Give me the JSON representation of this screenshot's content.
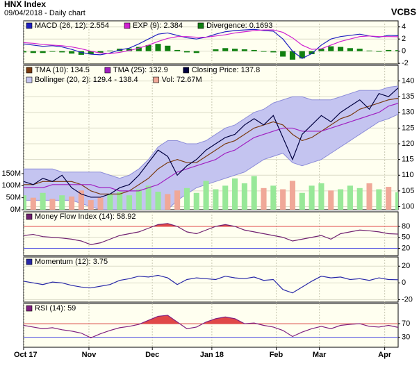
{
  "header": {
    "title": "HNX Index",
    "subtitle": "09/04/2018 - Daily chart",
    "brand": "VCBS"
  },
  "chart_data": [
    {
      "type": "line",
      "xlim": [
        0,
        39
      ],
      "ylim": [
        -2.1,
        5
      ],
      "yticks": [
        -2,
        0,
        2,
        4
      ],
      "grid": true,
      "series": [
        {
          "name": "MACD (26, 12): 2.554",
          "style": "line",
          "color": "#2020c0",
          "values": [
            1.2,
            1.0,
            0.8,
            0.9,
            0.7,
            0.3,
            -0.2,
            -0.5,
            -0.6,
            -0.3,
            0.2,
            0.5,
            1.2,
            2.0,
            2.8,
            3.0,
            2.6,
            2.2,
            2.0,
            2.3,
            2.8,
            3.2,
            3.4,
            3.5,
            3.6,
            3.4,
            3.3,
            2.0,
            0.0,
            -1.2,
            -0.4,
            1.0,
            2.0,
            2.4,
            2.6,
            2.8,
            2.5,
            2.3,
            2.6,
            2.554
          ]
        },
        {
          "name": "EXP (9): 2.384",
          "style": "line",
          "color": "#d020d0",
          "values": [
            1.4,
            1.3,
            1.1,
            1.0,
            0.9,
            0.7,
            0.4,
            0.0,
            -0.3,
            -0.4,
            -0.2,
            0.1,
            0.5,
            1.0,
            1.6,
            2.1,
            2.4,
            2.4,
            2.3,
            2.3,
            2.5,
            2.7,
            3.0,
            3.2,
            3.4,
            3.5,
            3.5,
            3.1,
            2.2,
            1.0,
            0.3,
            0.4,
            1.0,
            1.6,
            2.0,
            2.4,
            2.5,
            2.4,
            2.4,
            2.384
          ]
        },
        {
          "name": "Divergence: 0.1693",
          "style": "bar",
          "color": "#108010",
          "values": [
            -0.2,
            -0.3,
            -0.3,
            -0.1,
            -0.2,
            -0.4,
            -0.6,
            -0.5,
            -0.3,
            0.1,
            0.4,
            0.4,
            0.7,
            1.0,
            1.2,
            0.9,
            0.2,
            -0.2,
            -0.3,
            0.0,
            0.3,
            0.5,
            0.4,
            0.3,
            0.2,
            -0.1,
            -0.2,
            -0.9,
            -1.4,
            -1.2,
            -0.5,
            0.4,
            0.8,
            0.7,
            0.5,
            0.4,
            0.1,
            -0.1,
            0.2,
            0.1693
          ]
        }
      ]
    },
    {
      "type": "line",
      "xlim": [
        0,
        39
      ],
      "ylim": [
        99,
        145
      ],
      "yticks": [
        100,
        105,
        110,
        115,
        120,
        125,
        130,
        135,
        140
      ],
      "grid": true,
      "y2lim": [
        0,
        600
      ],
      "y2ticks": [
        {
          "value": 0,
          "label": "0M"
        },
        {
          "value": 50,
          "label": "50M"
        },
        {
          "value": 100,
          "label": "100M"
        },
        {
          "value": 150,
          "label": "150M"
        }
      ],
      "series": [
        {
          "name": "TMA (10): 134.5",
          "style": "line",
          "color": "#7a3a10",
          "values": [
            107,
            107,
            108,
            108,
            108,
            108,
            107,
            105,
            104,
            104,
            104,
            105,
            107,
            109,
            112,
            114,
            115,
            114,
            114,
            116,
            118,
            120,
            121,
            123,
            125,
            126,
            127,
            126,
            123,
            121,
            122,
            124,
            126,
            128,
            129,
            131,
            132,
            133,
            134,
            134.5
          ]
        },
        {
          "name": "TMA (25): 132.9",
          "style": "line",
          "color": "#a020c0",
          "values": [
            106,
            106,
            106,
            107,
            107,
            107,
            107,
            107,
            106,
            106,
            105,
            105,
            105,
            106,
            107,
            109,
            111,
            112,
            113,
            114,
            115,
            117,
            118,
            120,
            122,
            123,
            124,
            125,
            125,
            124,
            124,
            124,
            125,
            126,
            127,
            128,
            129,
            130,
            132,
            132.9
          ]
        },
        {
          "name": "Closing Price: 137.8",
          "style": "line",
          "color": "#000040",
          "values": [
            108,
            107,
            109,
            108,
            110,
            106,
            104,
            103,
            103,
            104,
            106,
            107,
            110,
            114,
            118,
            116,
            110,
            113,
            115,
            118,
            120,
            122,
            123,
            126,
            128,
            126,
            129,
            122,
            115,
            123,
            126,
            129,
            127,
            130,
            132,
            134,
            131,
            136,
            135,
            137.8
          ]
        },
        {
          "name": "Bollinger (20, 2): 129.4 - 138.4",
          "style": "band",
          "color": "#c4c4f0",
          "edge": "#8c8cd8",
          "upper": [
            112,
            112,
            112,
            112,
            111,
            111,
            111,
            111,
            111,
            110,
            109,
            110,
            112,
            115,
            119,
            121,
            121,
            120,
            120,
            121,
            123,
            125,
            126,
            128,
            130,
            131,
            133,
            134,
            135,
            135,
            134,
            134,
            134,
            135,
            136,
            137,
            137,
            137,
            138,
            138.4
          ],
          "lower": [
            102,
            102,
            102,
            102,
            102,
            102,
            101,
            100,
            99,
            99,
            99,
            99,
            99,
            98,
            98,
            99,
            102,
            104,
            106,
            107,
            108,
            109,
            110,
            111,
            113,
            115,
            116,
            117,
            114,
            113,
            114,
            115,
            117,
            119,
            121,
            123,
            125,
            127,
            128,
            129.4
          ]
        },
        {
          "name": "Vol: 72.67M",
          "style": "bar",
          "axis": "y2",
          "color": "#f0a898",
          "colors": [
            "#98e898",
            "#f0a898",
            "#98e898",
            "#f0a898",
            "#98e898",
            "#f0a898",
            "#f0a898",
            "#f0a898",
            "#f0a898",
            "#98e898",
            "#98e898",
            "#98e898",
            "#98e898",
            "#98e898",
            "#98e898",
            "#f0a898",
            "#f0a898",
            "#98e898",
            "#98e898",
            "#98e898",
            "#98e898",
            "#98e898",
            "#98e898",
            "#98e898",
            "#98e898",
            "#f0a898",
            "#98e898",
            "#f0a898",
            "#f0a898",
            "#98e898",
            "#98e898",
            "#98e898",
            "#f0a898",
            "#98e898",
            "#98e898",
            "#98e898",
            "#f0a898",
            "#98e898",
            "#f0a898",
            "#98e898"
          ],
          "values": [
            60,
            50,
            70,
            45,
            60,
            55,
            80,
            40,
            50,
            65,
            75,
            60,
            85,
            100,
            75,
            65,
            80,
            90,
            70,
            120,
            85,
            100,
            130,
            110,
            140,
            90,
            100,
            85,
            120,
            70,
            100,
            110,
            80,
            85,
            100,
            90,
            110,
            85,
            95,
            72.67
          ]
        }
      ]
    },
    {
      "type": "line",
      "xlim": [
        0,
        39
      ],
      "ylim": [
        0,
        120
      ],
      "yticks": [
        20,
        50,
        80
      ],
      "grid": true,
      "levels": [
        {
          "value": 80,
          "color": "#e04848",
          "fill": "above"
        },
        {
          "value": 20,
          "color": "#4848e0",
          "fill": "below"
        }
      ],
      "series": [
        {
          "name": "Money Flow Index (14): 58.92",
          "style": "line",
          "color": "#702070",
          "values": [
            55,
            58,
            52,
            50,
            48,
            45,
            40,
            30,
            35,
            45,
            55,
            60,
            65,
            75,
            85,
            88,
            80,
            65,
            60,
            70,
            80,
            85,
            80,
            70,
            65,
            60,
            55,
            50,
            40,
            45,
            50,
            55,
            45,
            60,
            65,
            70,
            68,
            65,
            60,
            58.92
          ]
        }
      ]
    },
    {
      "type": "line",
      "xlim": [
        0,
        39
      ],
      "ylim": [
        -23,
        31
      ],
      "yticks": [
        -20,
        0,
        20
      ],
      "grid": true,
      "series": [
        {
          "name": "Momentum (12): 3.75",
          "style": "line",
          "color": "#2828a8",
          "values": [
            2,
            0,
            -2,
            1,
            0,
            -3,
            -5,
            -6,
            -4,
            -2,
            3,
            5,
            8,
            7,
            9,
            6,
            -2,
            4,
            6,
            5,
            4,
            8,
            6,
            5,
            7,
            3,
            4,
            -8,
            -12,
            -5,
            2,
            8,
            6,
            7,
            4,
            5,
            3,
            6,
            4,
            3.75
          ]
        }
      ]
    },
    {
      "type": "line",
      "xlim": [
        0,
        39
      ],
      "ylim": [
        0,
        130
      ],
      "yticks": [
        30,
        70
      ],
      "grid": true,
      "levels": [
        {
          "value": 70,
          "color": "#e04848",
          "fill": "above"
        },
        {
          "value": 30,
          "color": "#4848e0",
          "fill": "below"
        }
      ],
      "series": [
        {
          "name": "RSI (14): 59",
          "style": "line",
          "color": "#802080",
          "values": [
            65,
            60,
            55,
            58,
            52,
            48,
            42,
            28,
            40,
            50,
            58,
            62,
            68,
            80,
            92,
            95,
            75,
            55,
            60,
            75,
            85,
            90,
            85,
            70,
            72,
            65,
            60,
            50,
            32,
            45,
            55,
            62,
            55,
            65,
            68,
            70,
            62,
            60,
            65,
            59
          ]
        }
      ],
      "xticks": [
        {
          "value": 0,
          "label": "Oct 17"
        },
        {
          "value": 6.8,
          "label": "Nov"
        },
        {
          "value": 13.4,
          "label": "Dec"
        },
        {
          "value": 19.6,
          "label": "Jan 18"
        },
        {
          "value": 26.3,
          "label": "Feb"
        },
        {
          "value": 30.8,
          "label": "Mar"
        },
        {
          "value": 37.6,
          "label": "Apr"
        }
      ]
    }
  ]
}
